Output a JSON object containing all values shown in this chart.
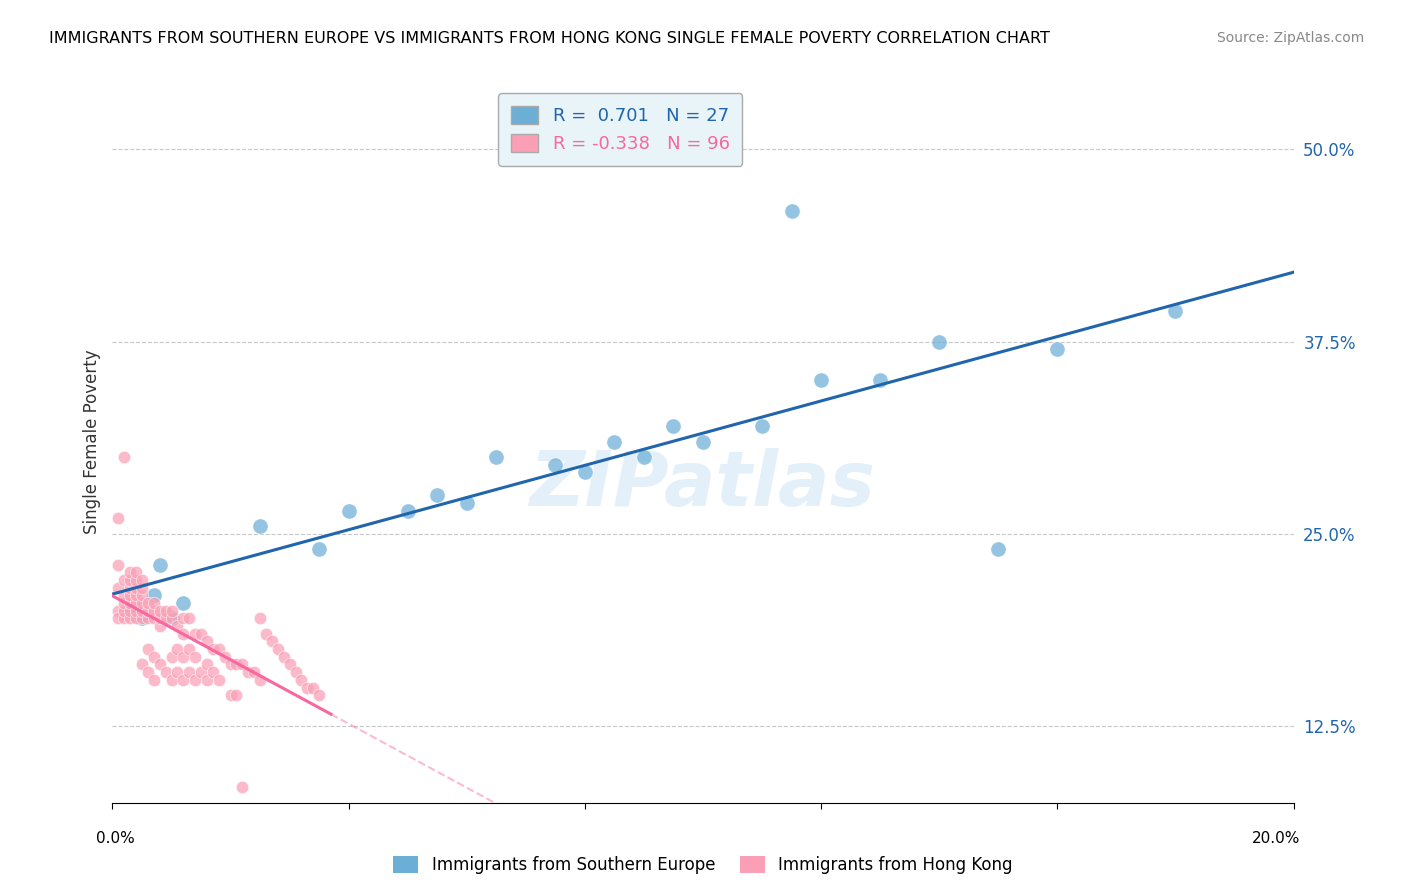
{
  "title": "IMMIGRANTS FROM SOUTHERN EUROPE VS IMMIGRANTS FROM HONG KONG SINGLE FEMALE POVERTY CORRELATION CHART",
  "source": "Source: ZipAtlas.com",
  "ylabel": "Single Female Poverty",
  "right_yticks": [
    "50.0%",
    "37.5%",
    "25.0%",
    "12.5%"
  ],
  "right_ytick_vals": [
    0.5,
    0.375,
    0.25,
    0.125
  ],
  "xlim": [
    0.0,
    0.2
  ],
  "ylim": [
    0.075,
    0.545
  ],
  "R_blue": 0.701,
  "N_blue": 27,
  "R_pink": -0.338,
  "N_pink": 96,
  "blue_color": "#6baed6",
  "pink_color": "#fa9fb5",
  "blue_line_color": "#2166ac",
  "pink_line_color": "#f768a1",
  "watermark": "ZIPatlas",
  "legend_box_color": "#e8f4f8",
  "blue_scatter_x": [
    0.005,
    0.007,
    0.01,
    0.012,
    0.008,
    0.003,
    0.025,
    0.035,
    0.04,
    0.05,
    0.055,
    0.06,
    0.065,
    0.075,
    0.08,
    0.085,
    0.09,
    0.095,
    0.1,
    0.11,
    0.115,
    0.12,
    0.13,
    0.14,
    0.15,
    0.16,
    0.18
  ],
  "blue_scatter_y": [
    0.195,
    0.21,
    0.195,
    0.205,
    0.23,
    0.2,
    0.255,
    0.24,
    0.265,
    0.265,
    0.275,
    0.27,
    0.3,
    0.295,
    0.29,
    0.31,
    0.3,
    0.32,
    0.31,
    0.32,
    0.46,
    0.35,
    0.35,
    0.375,
    0.24,
    0.37,
    0.395
  ],
  "pink_scatter_x": [
    0.001,
    0.001,
    0.001,
    0.001,
    0.001,
    0.002,
    0.002,
    0.002,
    0.002,
    0.002,
    0.002,
    0.003,
    0.003,
    0.003,
    0.003,
    0.003,
    0.003,
    0.003,
    0.004,
    0.004,
    0.004,
    0.004,
    0.004,
    0.004,
    0.004,
    0.005,
    0.005,
    0.005,
    0.005,
    0.005,
    0.005,
    0.005,
    0.006,
    0.006,
    0.006,
    0.006,
    0.006,
    0.007,
    0.007,
    0.007,
    0.007,
    0.007,
    0.008,
    0.008,
    0.008,
    0.008,
    0.009,
    0.009,
    0.009,
    0.01,
    0.01,
    0.01,
    0.01,
    0.011,
    0.011,
    0.011,
    0.012,
    0.012,
    0.012,
    0.012,
    0.013,
    0.013,
    0.013,
    0.014,
    0.014,
    0.014,
    0.015,
    0.015,
    0.016,
    0.016,
    0.016,
    0.017,
    0.017,
    0.018,
    0.018,
    0.019,
    0.02,
    0.02,
    0.021,
    0.021,
    0.022,
    0.022,
    0.023,
    0.024,
    0.025,
    0.025,
    0.026,
    0.027,
    0.028,
    0.029,
    0.03,
    0.031,
    0.032,
    0.033,
    0.034,
    0.035
  ],
  "pink_scatter_y": [
    0.2,
    0.215,
    0.23,
    0.26,
    0.195,
    0.195,
    0.2,
    0.205,
    0.21,
    0.22,
    0.3,
    0.195,
    0.2,
    0.205,
    0.21,
    0.215,
    0.22,
    0.225,
    0.195,
    0.2,
    0.205,
    0.21,
    0.215,
    0.22,
    0.225,
    0.195,
    0.2,
    0.205,
    0.21,
    0.215,
    0.22,
    0.165,
    0.195,
    0.2,
    0.205,
    0.175,
    0.16,
    0.195,
    0.2,
    0.205,
    0.17,
    0.155,
    0.19,
    0.195,
    0.2,
    0.165,
    0.195,
    0.2,
    0.16,
    0.195,
    0.2,
    0.155,
    0.17,
    0.19,
    0.175,
    0.16,
    0.195,
    0.185,
    0.17,
    0.155,
    0.195,
    0.175,
    0.16,
    0.185,
    0.17,
    0.155,
    0.185,
    0.16,
    0.18,
    0.165,
    0.155,
    0.175,
    0.16,
    0.175,
    0.155,
    0.17,
    0.165,
    0.145,
    0.165,
    0.145,
    0.165,
    0.085,
    0.16,
    0.16,
    0.195,
    0.155,
    0.185,
    0.18,
    0.175,
    0.17,
    0.165,
    0.16,
    0.155,
    0.15,
    0.15,
    0.145
  ]
}
